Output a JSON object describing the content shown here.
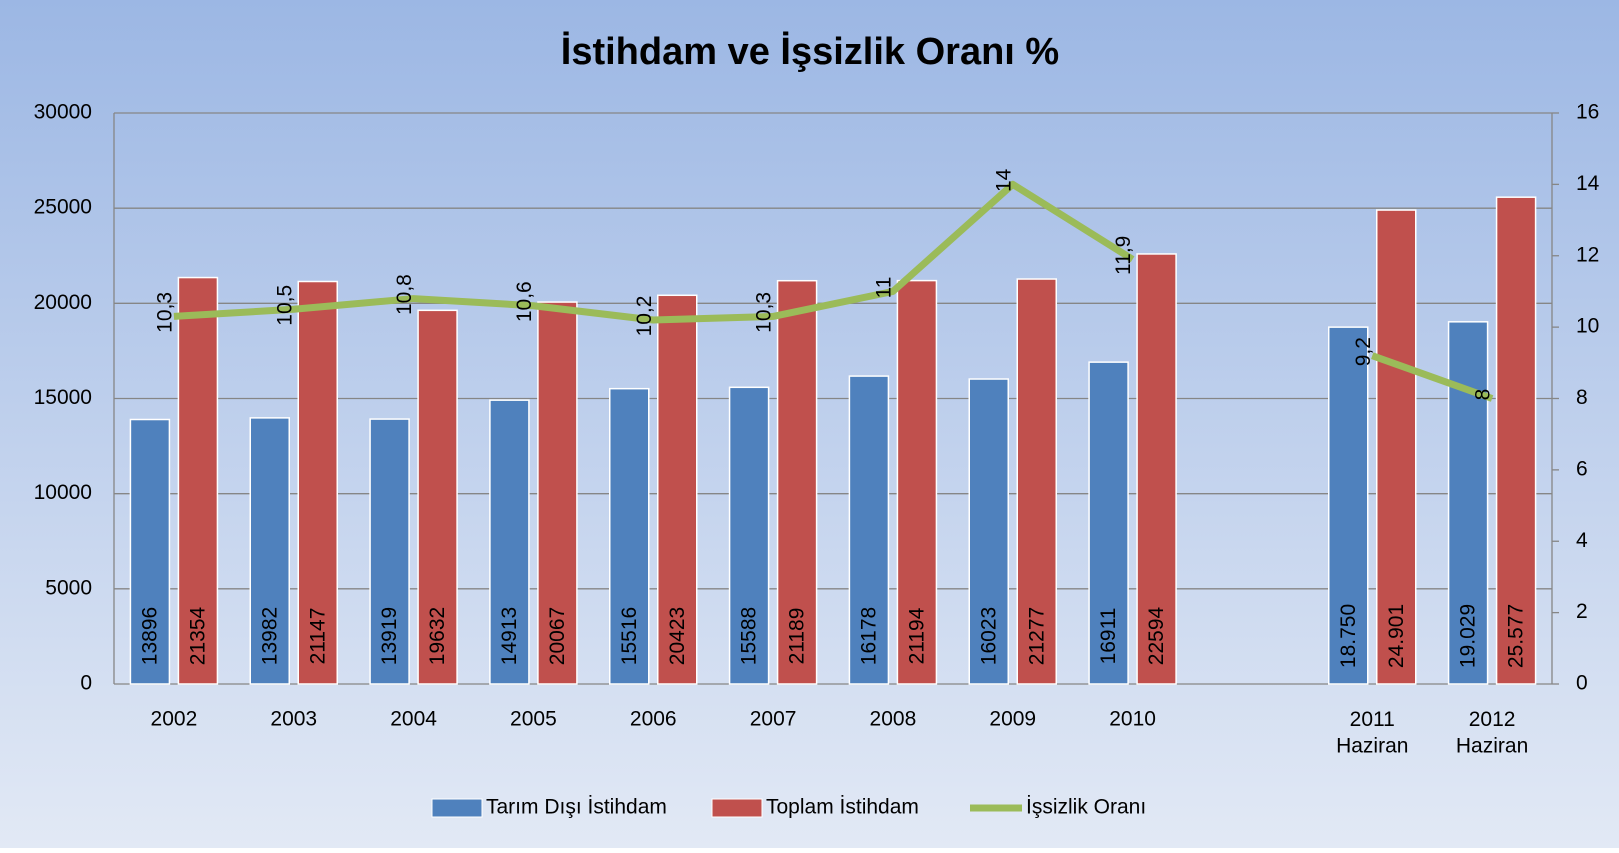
{
  "chart_data": {
    "type": "bar",
    "title": "İstihdam ve İşsizlik Oranı %",
    "categories": [
      "2002",
      "2003",
      "2004",
      "2005",
      "2006",
      "2007",
      "2008",
      "2009",
      "2010",
      null,
      "2011\nHaziran",
      "2012\nHaziran"
    ],
    "series": [
      {
        "name": "Tarım Dışı İstihdam",
        "type": "bar",
        "color": "#4f81bd",
        "values": [
          13896,
          13982,
          13919,
          14913,
          15516,
          15588,
          16178,
          16023,
          16911,
          null,
          18750,
          19029
        ],
        "value_labels": [
          "13896",
          "13982",
          "13919",
          "14913",
          "15516",
          "15588",
          "16178",
          "16023",
          "16911",
          null,
          "18.750",
          "19.029"
        ]
      },
      {
        "name": "Toplam İstihdam",
        "type": "bar",
        "color": "#c0504d",
        "values": [
          21354,
          21147,
          19632,
          20067,
          20423,
          21189,
          21194,
          21277,
          22594,
          null,
          24901,
          25577
        ],
        "value_labels": [
          "21354",
          "21147",
          "19632",
          "20067",
          "20423",
          "21189",
          "21194",
          "21277",
          "22594",
          null,
          "24.901",
          "25.577"
        ]
      },
      {
        "name": "İşsizlik Oranı",
        "type": "line",
        "axis": "y2",
        "color": "#9bbb59",
        "values": [
          10.3,
          10.5,
          10.8,
          10.6,
          10.2,
          10.3,
          11,
          14,
          11.9,
          null,
          9.2,
          8
        ],
        "value_labels": [
          "10,3",
          "10,5",
          "10,8",
          "10,6",
          "10,2",
          "10,3",
          "11",
          "14",
          "11,9",
          null,
          "9,2",
          "8"
        ]
      }
    ],
    "ylim": [
      0,
      30000
    ],
    "yticks": [
      0,
      5000,
      10000,
      15000,
      20000,
      25000,
      30000
    ],
    "y2lim": [
      0,
      16
    ],
    "y2ticks": [
      0,
      2,
      4,
      6,
      8,
      10,
      12,
      14,
      16
    ],
    "grid": true,
    "legend": "bottom"
  }
}
